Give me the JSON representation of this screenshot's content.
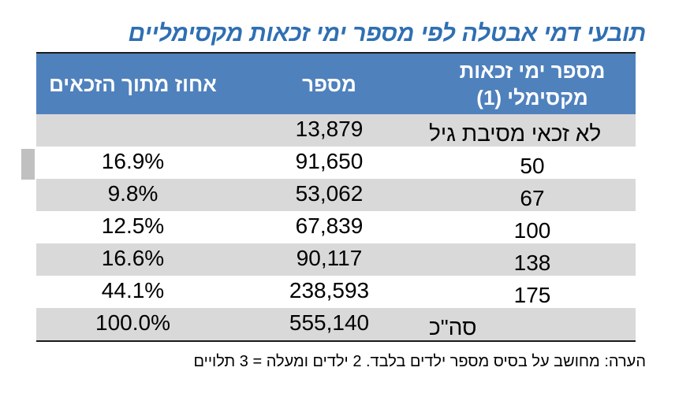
{
  "title": "תובעי דמי אבטלה לפי מספר ימי זכאות מקסימליים",
  "headers": {
    "days": "מספר ימי זכאות מקסימלי (1)",
    "number": "מספר",
    "percent": "אחוז מתוך הזכאים"
  },
  "rows": [
    {
      "days": "לא זכאי מסיבת גיל",
      "number": "13,879",
      "percent": ""
    },
    {
      "days": "50",
      "number": "91,650",
      "percent": "16.9%"
    },
    {
      "days": "67",
      "number": "53,062",
      "percent": "9.8%"
    },
    {
      "days": "100",
      "number": "67,839",
      "percent": "12.5%"
    },
    {
      "days": "138",
      "number": "90,117",
      "percent": "16.6%"
    },
    {
      "days": "175",
      "number": "238,593",
      "percent": "44.1%"
    },
    {
      "days": "סה\"כ",
      "number": "555,140",
      "percent": "100.0%"
    }
  ],
  "note": "הערה: מחושב על בסיס מספר ילדים בלבד. 2 ילדים ומעלה = 3 תלויים",
  "colors": {
    "title": "#2f6fb3",
    "header_bg": "#4f81bd",
    "shade": "#d9d9d9"
  }
}
